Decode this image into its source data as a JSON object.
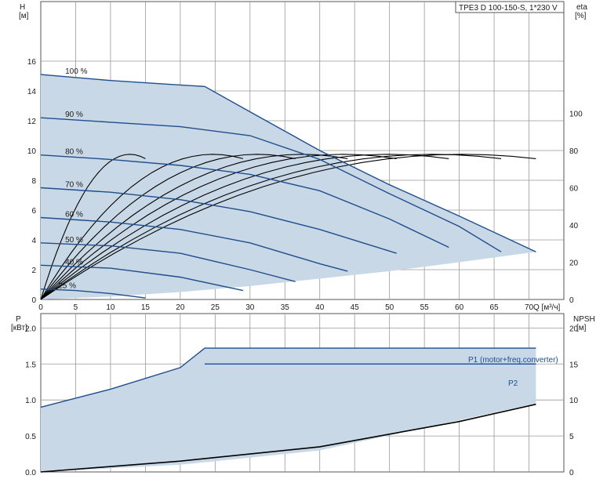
{
  "chart_data": [
    {
      "type": "line",
      "title": "TPE3 D 100-150-S, 1*230 V",
      "xlabel": "Q [м³/ч]",
      "ylabel": "H",
      "ylabel_unit": "[м]",
      "y2label": "eta",
      "y2label_unit": "[%]",
      "xlim": [
        0,
        75
      ],
      "ylim": [
        0,
        20
      ],
      "y2lim": [
        0,
        160
      ],
      "xticks": [
        0,
        5,
        10,
        15,
        20,
        25,
        30,
        35,
        40,
        45,
        50,
        55,
        60,
        65,
        70
      ],
      "yticks": [
        0,
        2,
        4,
        6,
        8,
        10,
        12,
        14,
        16
      ],
      "y2ticks": [
        0,
        20,
        40,
        60,
        80,
        100
      ],
      "grid": true,
      "envelope_fill": "#c9d8e6",
      "curve_color": "#1f4e8c",
      "series": [
        {
          "name": "100 %",
          "x": [
            0,
            10,
            20,
            23.5,
            30,
            40,
            50,
            60,
            71
          ],
          "values": [
            15.1,
            14.7,
            14.4,
            14.3,
            12.6,
            10.0,
            7.7,
            5.6,
            3.2
          ]
        },
        {
          "name": "90 %",
          "x": [
            0,
            10,
            20,
            30,
            40,
            50,
            60,
            66
          ],
          "values": [
            12.2,
            11.9,
            11.6,
            11.0,
            9.4,
            7.1,
            4.9,
            3.2
          ]
        },
        {
          "name": "80 %",
          "x": [
            0,
            10,
            20,
            30,
            40,
            50,
            58.5
          ],
          "values": [
            9.7,
            9.4,
            9.0,
            8.4,
            7.3,
            5.4,
            3.5
          ]
        },
        {
          "name": "70 %",
          "x": [
            0,
            10,
            20,
            30,
            40,
            51
          ],
          "values": [
            7.5,
            7.2,
            6.7,
            5.9,
            4.7,
            3.1
          ]
        },
        {
          "name": "60 %",
          "x": [
            0,
            10,
            20,
            30,
            40,
            44
          ],
          "values": [
            5.5,
            5.2,
            4.7,
            3.8,
            2.4,
            1.9
          ]
        },
        {
          "name": "50 %",
          "x": [
            0,
            10,
            20,
            30,
            36.5
          ],
          "values": [
            3.8,
            3.6,
            3.1,
            2.0,
            1.2
          ]
        },
        {
          "name": "40 %",
          "x": [
            0,
            10,
            20,
            29
          ],
          "values": [
            2.3,
            2.1,
            1.5,
            0.6
          ]
        },
        {
          "name": "25 %",
          "x": [
            0,
            5,
            10,
            15
          ],
          "values": [
            0.7,
            0.6,
            0.4,
            0.1
          ]
        }
      ]
    },
    {
      "type": "line",
      "xlabel": "Q [м³/ч]",
      "ylabel": "P",
      "ylabel_unit": "[кВт]",
      "y2label": "NPSH",
      "y2label_unit": "[м]",
      "xlim": [
        0,
        75
      ],
      "ylim": [
        0,
        2.2
      ],
      "y2lim": [
        0,
        22
      ],
      "yticks": [
        0.0,
        0.5,
        1.0,
        1.5,
        2.0
      ],
      "y2ticks": [
        0,
        5,
        10,
        15,
        20
      ],
      "grid": true,
      "series": [
        {
          "name": "P1 (motor+freq.converter)",
          "x": [
            0,
            10,
            20,
            23.5,
            40,
            60,
            71
          ],
          "values": [
            0.9,
            1.15,
            1.45,
            1.72,
            1.72,
            1.72,
            1.72
          ]
        },
        {
          "name": "P2",
          "x": [
            23.5,
            40,
            60,
            71
          ],
          "values": [
            1.5,
            1.5,
            1.5,
            1.5
          ]
        },
        {
          "name": "NPSH",
          "x": [
            0,
            20,
            40,
            60,
            71
          ],
          "values": [
            0.0,
            0.15,
            0.35,
            0.7,
            0.94
          ]
        }
      ]
    }
  ],
  "labels": {
    "title": "TPE3 D 100-150-S, 1*230 V",
    "h_axis": "H",
    "h_unit": "[м]",
    "eta_axis": "eta",
    "eta_unit": "[%]",
    "q_axis": "Q [м³/ч]",
    "p_axis": "P",
    "p_unit": "[кВт]",
    "npsh_axis": "NPSH",
    "npsh_unit": "[м]",
    "p1_label": "P1 (motor+freq.converter)",
    "p2_label": "P2"
  }
}
